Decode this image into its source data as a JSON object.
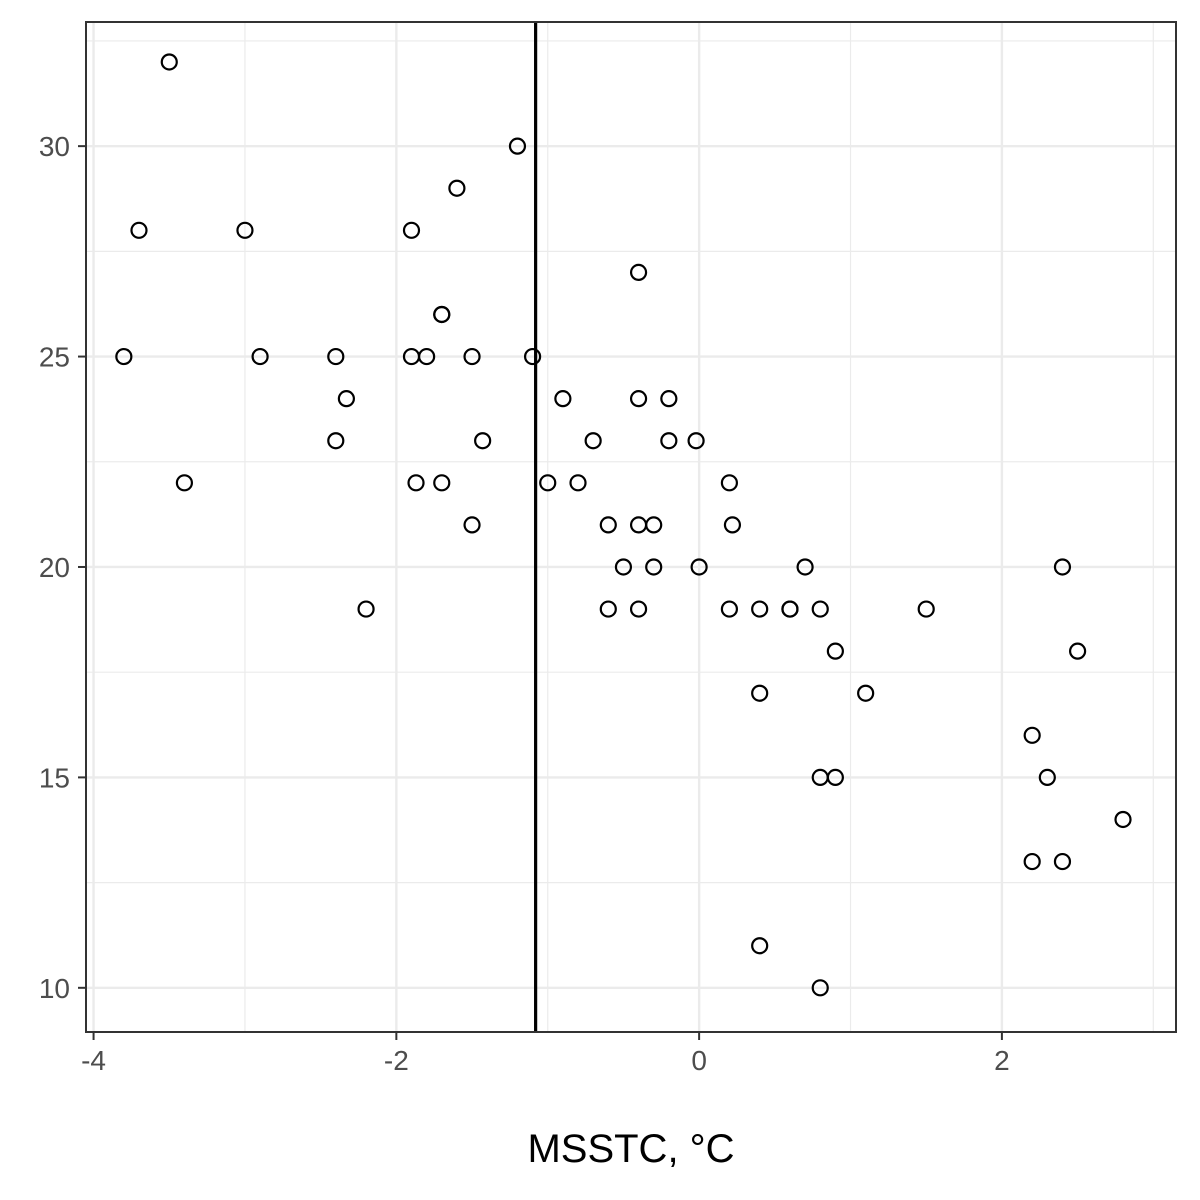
{
  "chart_data": {
    "type": "scatter",
    "title": "",
    "xlabel": "MSSTC, °C",
    "ylabel": "",
    "xlim": [
      -4.05,
      3.15
    ],
    "ylim": [
      8.95,
      32.95
    ],
    "x_ticks": [
      -4,
      -2,
      0,
      2
    ],
    "y_ticks": [
      10,
      15,
      20,
      25,
      30
    ],
    "x_tick_labels": [
      "-4",
      "-2",
      "0",
      "2"
    ],
    "y_tick_labels": [
      "10",
      "15",
      "20",
      "25",
      "30"
    ],
    "grid": true,
    "theme": "bw",
    "vline": {
      "x": -1.08,
      "color": "#000000"
    },
    "point_style": {
      "shape": "open-circle",
      "stroke": "#000000",
      "fill": "none"
    },
    "series": [
      {
        "points": [
          [
            -3.5,
            32
          ],
          [
            -1.2,
            30
          ],
          [
            -1.6,
            29
          ],
          [
            -3.7,
            28
          ],
          [
            -3.0,
            28
          ],
          [
            -1.9,
            28
          ],
          [
            -0.4,
            27
          ],
          [
            -1.7,
            26
          ],
          [
            -1.7,
            26
          ],
          [
            -3.8,
            25
          ],
          [
            -2.9,
            25
          ],
          [
            -2.4,
            25
          ],
          [
            -1.9,
            25
          ],
          [
            -1.8,
            25
          ],
          [
            -1.5,
            25
          ],
          [
            -1.1,
            25
          ],
          [
            -2.33,
            24
          ],
          [
            -0.9,
            24
          ],
          [
            -0.4,
            24
          ],
          [
            -0.2,
            24
          ],
          [
            -2.4,
            23
          ],
          [
            -1.43,
            23
          ],
          [
            -0.7,
            23
          ],
          [
            -0.2,
            23
          ],
          [
            -0.02,
            23
          ],
          [
            -3.4,
            22
          ],
          [
            -1.87,
            22
          ],
          [
            -1.7,
            22
          ],
          [
            -1.0,
            22
          ],
          [
            -0.8,
            22
          ],
          [
            0.2,
            22
          ],
          [
            -1.5,
            21
          ],
          [
            -0.6,
            21
          ],
          [
            -0.4,
            21
          ],
          [
            -0.3,
            21
          ],
          [
            0.22,
            21
          ],
          [
            -0.5,
            20
          ],
          [
            -0.3,
            20
          ],
          [
            0.0,
            20
          ],
          [
            0.7,
            20
          ],
          [
            2.4,
            20
          ],
          [
            -2.2,
            19
          ],
          [
            -0.6,
            19
          ],
          [
            -0.4,
            19
          ],
          [
            0.2,
            19
          ],
          [
            0.4,
            19
          ],
          [
            0.6,
            19
          ],
          [
            0.6,
            19
          ],
          [
            0.8,
            19
          ],
          [
            1.5,
            19
          ],
          [
            0.9,
            18
          ],
          [
            2.5,
            18
          ],
          [
            0.4,
            17
          ],
          [
            1.1,
            17
          ],
          [
            2.2,
            16
          ],
          [
            0.8,
            15
          ],
          [
            0.9,
            15
          ],
          [
            2.3,
            15
          ],
          [
            2.8,
            14
          ],
          [
            2.2,
            13
          ],
          [
            2.4,
            13
          ],
          [
            0.4,
            11
          ],
          [
            0.8,
            10
          ]
        ]
      }
    ]
  }
}
